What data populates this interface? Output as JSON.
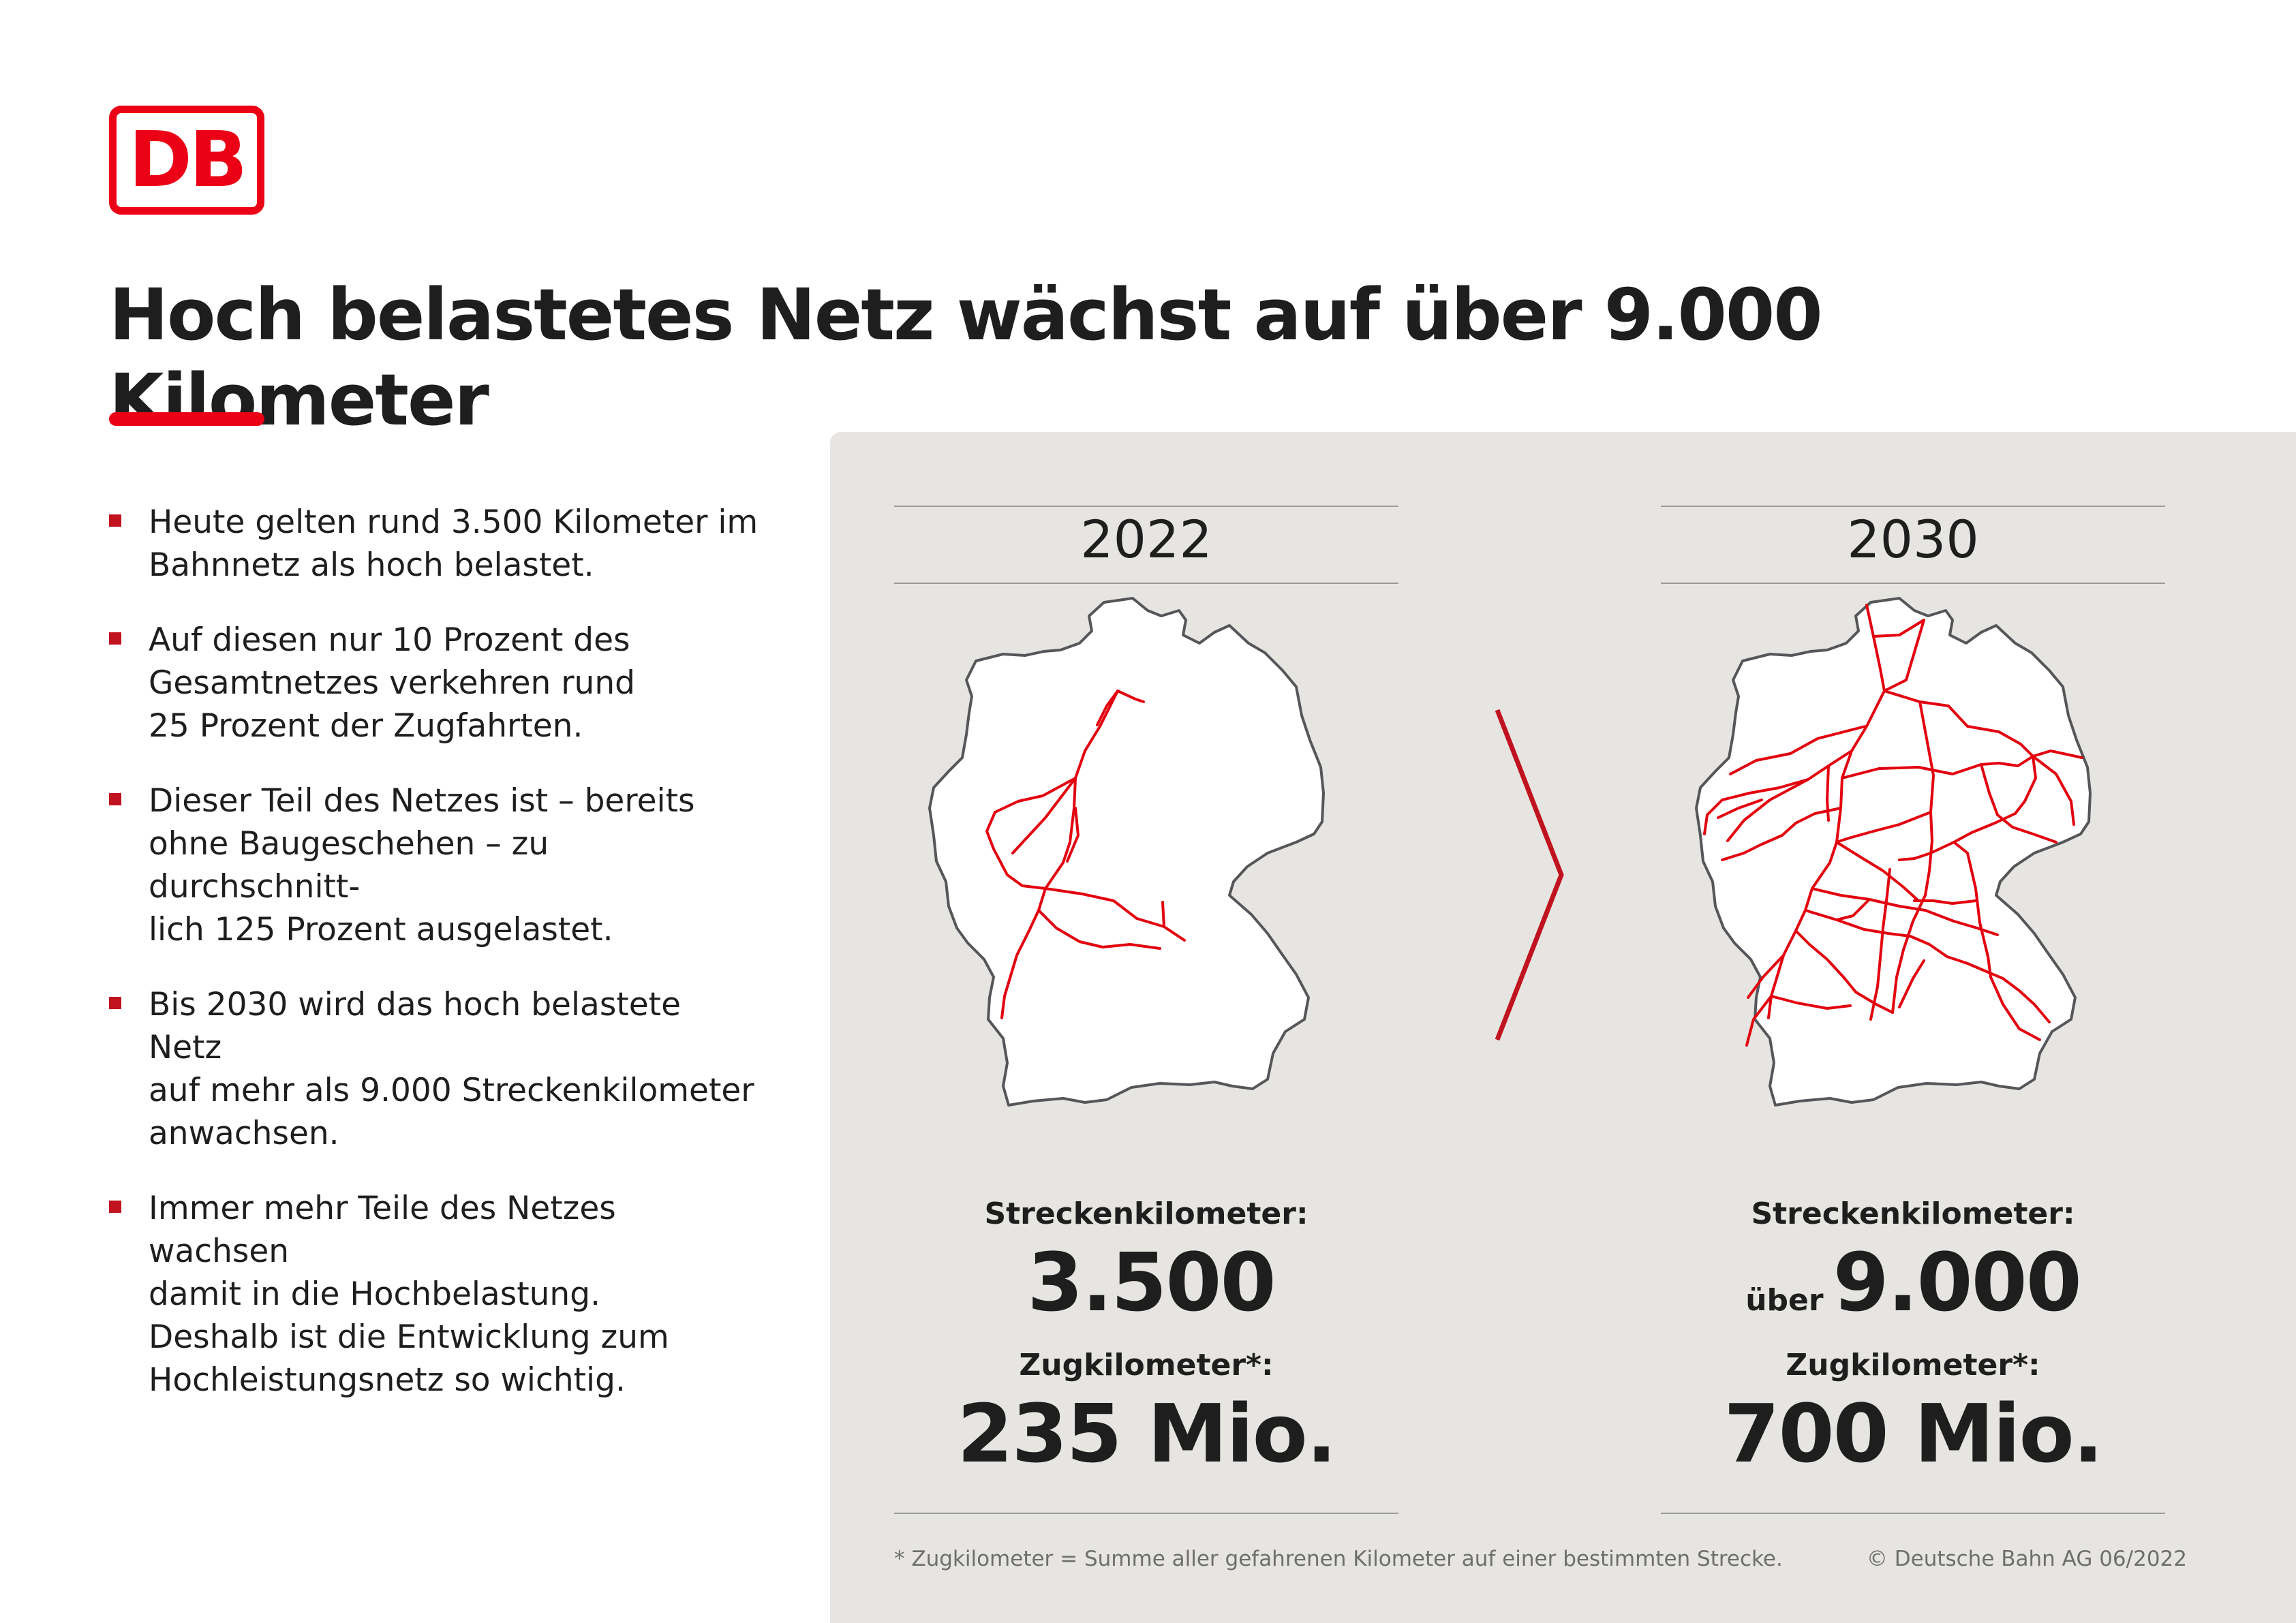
{
  "brand": {
    "logo_text": "DB",
    "accent_color": "#ec0016"
  },
  "title": "Hoch belastetes Netz wächst auf über 9.000 Kilometer",
  "bullets": [
    "Heute gelten rund 3.500 Kilometer im\nBahnnetz als hoch belastet.",
    "Auf diesen nur 10 Prozent des\nGesamtnetzes verkehren rund\n25 Prozent der Zugfahrten.",
    "Dieser Teil des Netzes ist – bereits\nohne Baugeschehen – zu durchschnitt-\nlich 125 Prozent ausgelastet.",
    "Bis 2030 wird das hoch belastete Netz\nauf mehr als 9.000 Streckenkilometer\nanwachsen.",
    "Immer mehr Teile des Netzes wachsen\ndamit in die Hochbelastung.\nDeshalb ist die Entwicklung zum\nHochleistungsnetz so wichtig."
  ],
  "comparison": {
    "left": {
      "year": "2022",
      "route_km_label": "Streckenkilometer:",
      "route_km_prefix": "",
      "route_km_value": "3.500",
      "train_km_label": "Zugkilometer*:",
      "train_km_value": "235 Mio."
    },
    "right": {
      "year": "2030",
      "route_km_label": "Streckenkilometer:",
      "route_km_prefix": "über",
      "route_km_value": "9.000",
      "train_km_label": "Zugkilometer*:",
      "train_km_value": "700 Mio."
    },
    "arrow_icon": "chevron-right-icon"
  },
  "footnote": "* Zugkilometer = Summe aller gefahrenen Kilometer auf einer bestimmten Strecke.",
  "copyright": "© Deutsche Bahn AG 06/2022",
  "colors": {
    "network_lines": "#e3000f",
    "panel_background": "#e6e5e1",
    "text": "#1e1e1e"
  }
}
